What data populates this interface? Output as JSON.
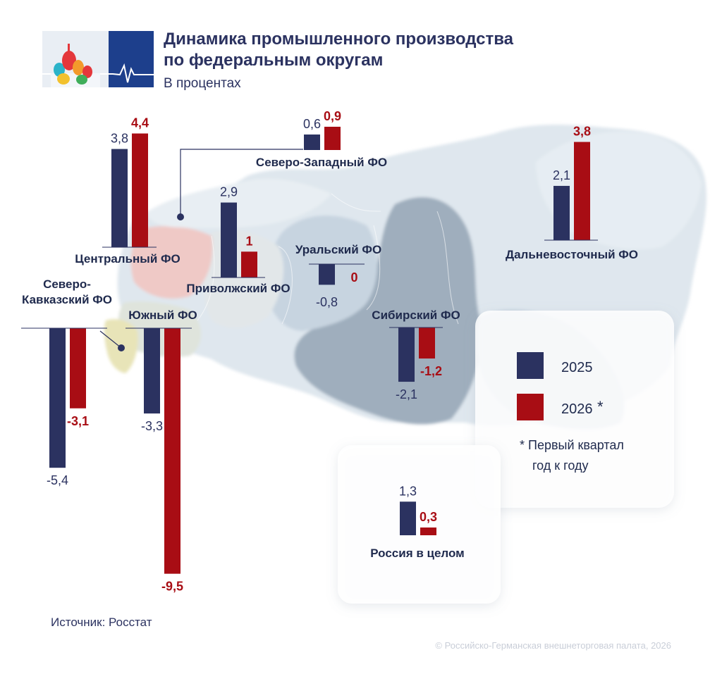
{
  "header": {
    "title_line1": "Динамика промышленного производства",
    "title_line2": "по федеральным округам",
    "subtitle": "В процентах"
  },
  "colors": {
    "series_2025": "#2b3260",
    "series_2026": "#a80d14",
    "label_2025": "#2b3260",
    "label_2026": "#a80d14",
    "map_base": "#dfe7ee",
    "map_siberia": "#9faebd",
    "map_ural": "#c7d4e0",
    "map_central": "#efc9c6",
    "map_volga": "#e2e7e9",
    "map_south": "#dfe4dc",
    "map_caucasus": "#e8e4b8",
    "title": "#2b3260",
    "note": "#c9ced8"
  },
  "chart_data": {
    "type": "bar",
    "title": "Динамика промышленного производства по федеральным округам",
    "subtitle": "В процентах",
    "series_names": [
      "2025",
      "2026 *"
    ],
    "regions": [
      {
        "id": "central",
        "name": "Центральный ФО",
        "v2025": 3.8,
        "v2026": 4.4,
        "label2025": "3,8",
        "label2026": "4,4"
      },
      {
        "id": "northwest",
        "name": "Северо-Западный ФО",
        "v2025": 0.6,
        "v2026": 0.9,
        "label2025": "0,6",
        "label2026": "0,9"
      },
      {
        "id": "volga",
        "name": "Приволжский ФО",
        "v2025": 2.9,
        "v2026": 1.0,
        "label2025": "2,9",
        "label2026": "1"
      },
      {
        "id": "ural",
        "name": "Уральский ФО",
        "v2025": -0.8,
        "v2026": 0.0,
        "label2025": "-0,8",
        "label2026": "0"
      },
      {
        "id": "fareast",
        "name": "Дальневосточный ФО",
        "v2025": 2.1,
        "v2026": 3.8,
        "label2025": "2,1",
        "label2026": "3,8"
      },
      {
        "id": "siberia",
        "name": "Сибирский ФО",
        "v2025": -2.1,
        "v2026": -1.2,
        "label2025": "-2,1",
        "label2026": "-1,2"
      },
      {
        "id": "caucasus",
        "name_line1": "Северо-",
        "name_line2": "Кавказский ФО",
        "v2025": -5.4,
        "v2026": -3.1,
        "label2025": "-5,4",
        "label2026": "-3,1"
      },
      {
        "id": "south",
        "name": "Южный ФО",
        "v2025": -3.3,
        "v2026": -9.5,
        "label2025": "-3,3",
        "label2026": "-9,5"
      },
      {
        "id": "russia",
        "name": "Россия в целом",
        "v2025": 1.3,
        "v2026": 0.3,
        "label2025": "1,3",
        "label2026": "0,3"
      }
    ]
  },
  "legend": {
    "item_2025": "2025",
    "item_2026": "2026",
    "asterisk": "*",
    "note_line1": "* Первый квартал",
    "note_line2": "год к году"
  },
  "footer": {
    "source": "Источник: Росстат",
    "copyright": "© Российско-Германская внешнеторговая палата, 2026"
  }
}
